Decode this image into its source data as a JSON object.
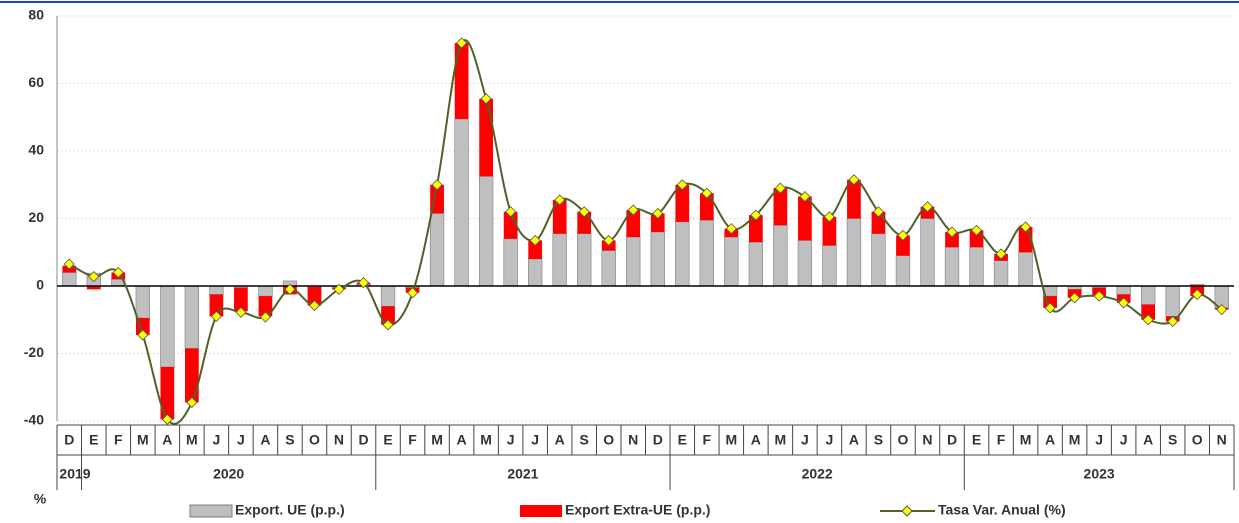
{
  "chart_data": {
    "type": "bar_line",
    "categories": [
      "D",
      "E",
      "F",
      "M",
      "A",
      "M",
      "J",
      "J",
      "A",
      "S",
      "O",
      "N",
      "D",
      "E",
      "F",
      "M",
      "A",
      "M",
      "J",
      "J",
      "A",
      "S",
      "O",
      "N",
      "D",
      "E",
      "F",
      "M",
      "A",
      "M",
      "J",
      "J",
      "A",
      "S",
      "O",
      "N",
      "D",
      "E",
      "F",
      "M",
      "A",
      "M",
      "J",
      "J",
      "A",
      "S",
      "O",
      "N"
    ],
    "category_groups": [
      {
        "label": "2019",
        "span": 1
      },
      {
        "label": "2020",
        "span": 12
      },
      {
        "label": "2021",
        "span": 12
      },
      {
        "label": "2022",
        "span": 12
      },
      {
        "label": "2023",
        "span": 11
      }
    ],
    "y_label": "%",
    "series": [
      {
        "name": "Export. UE (p.p.)",
        "kind": "bar",
        "color": "#bfbfbf",
        "values": [
          4,
          3.8,
          2,
          -9.5,
          -24,
          -18.5,
          -2.5,
          -0.5,
          -3,
          1.5,
          -0.3,
          -0.5,
          0.5,
          -6,
          -0.5,
          21.5,
          49.5,
          32.5,
          14,
          8,
          15.5,
          15.5,
          10.5,
          14.5,
          16,
          19,
          19.5,
          14.5,
          13,
          18,
          13.5,
          12,
          20,
          15.5,
          9,
          20,
          11.5,
          11.5,
          7.5,
          10,
          -3,
          -1,
          -0.5,
          -2.5,
          -5.5,
          -9,
          0.5,
          -6.5
        ]
      },
      {
        "name": "Export Extra-UE (p.p.)",
        "kind": "bar",
        "color": "#ff0000",
        "values": [
          2,
          -1,
          2,
          -5,
          -15.5,
          -16,
          -6.5,
          -7,
          -6,
          -2.5,
          -5.5,
          -0.5,
          0.5,
          -5.5,
          -1.5,
          8.5,
          22.5,
          23,
          8,
          5.5,
          10,
          6.5,
          3,
          8,
          5.5,
          11,
          8,
          2.5,
          8,
          11,
          13,
          8.5,
          11.5,
          6.5,
          6,
          3.5,
          4.5,
          5,
          2,
          7.5,
          -3.5,
          -2.5,
          -2.5,
          -2.5,
          -4.5,
          -1.5,
          -3,
          -0.5
        ]
      },
      {
        "name": "Tasa Var. Anual (%)",
        "kind": "line",
        "color": "#4f6228",
        "marker_color": "#ffff00",
        "values": [
          6.5,
          2.8,
          4,
          -14.5,
          -39.5,
          -34.5,
          -9,
          -7.8,
          -9.2,
          -1,
          -5.8,
          -1,
          1,
          -11.5,
          -2,
          30,
          72,
          55.5,
          22,
          13.5,
          25.5,
          22,
          13.5,
          22.5,
          21.5,
          30,
          27.5,
          17,
          21,
          29,
          26.5,
          20.5,
          31.5,
          22,
          15,
          23.5,
          16,
          16.5,
          9.5,
          17.5,
          -6.5,
          -3.5,
          -3,
          -5,
          -10,
          -10.5,
          -2.5,
          -7
        ]
      }
    ],
    "ylim": [
      -40,
      80
    ],
    "yticks": [
      -40,
      -20,
      0,
      20,
      40,
      60,
      80
    ],
    "grid": true
  }
}
